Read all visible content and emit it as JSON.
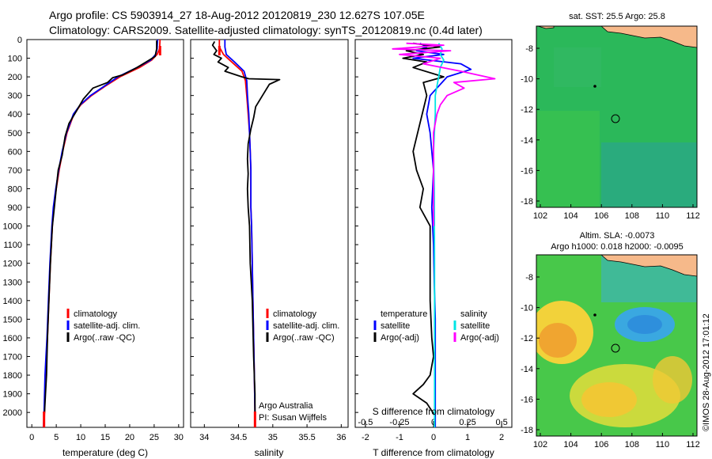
{
  "header": {
    "line1": "Argo profile: CS 5903914_27 18-Aug-2012 20120819_230 12.627S 107.05E",
    "line2": "Climatology: CARS2009. Satellite-adjusted climatology: synTS_20120819.nc (0.4d later)"
  },
  "colors": {
    "climatology": "#ff0000",
    "satellite": "#0000ff",
    "argo": "#000000",
    "sal_satellite": "#00e5e5",
    "sal_argo": "#ff00ff",
    "land": "#f6b98a"
  },
  "depth_axis": {
    "ticks": [
      0,
      100,
      200,
      300,
      400,
      500,
      600,
      700,
      800,
      900,
      1000,
      1100,
      1200,
      1300,
      1400,
      1500,
      1600,
      1700,
      1800,
      1900,
      2000
    ]
  },
  "legend_ts": [
    {
      "label": "climatology",
      "color_key": "climatology"
    },
    {
      "label": "satellite-adj. clim.",
      "color_key": "satellite"
    },
    {
      "label": "Argo(..raw -QC)",
      "color_key": "argo"
    }
  ],
  "legend_diff": {
    "temperature_title": "temperature",
    "salinity_title": "salinity",
    "t_satellite": "satellite",
    "t_argo": "Argo(-adj)",
    "s_satellite": "satellite",
    "s_argo": "Argo(-adj)"
  },
  "credits": {
    "line1": "Argo Australia",
    "line2": "PI: Susan Wijffels"
  },
  "maps": {
    "sst_title": "sat. SST: 25.5 Argo: 25.8",
    "sla_title1": "Altim. SLA: -0.0073",
    "sla_title2": "Argo h1000: 0.018 h2000: -0.0095",
    "lon_ticks": [
      "102",
      "104",
      "106",
      "108",
      "110",
      "112"
    ],
    "lat_ticks": [
      "-8",
      "-10",
      "-12",
      "-14",
      "-16",
      "-18"
    ],
    "timestamp": "©IMOS 28-Aug-2012 17:01:12"
  },
  "chart_data": [
    {
      "type": "line",
      "id": "temperature",
      "xlabel": "temperature (deg C)",
      "xlim": [
        -1,
        31
      ],
      "xticks": [
        0,
        5,
        10,
        15,
        20,
        25,
        30
      ],
      "ylim": [
        0,
        2080
      ],
      "series": [
        {
          "name": "climatology",
          "color_key": "climatology",
          "x": [
            26.2,
            26.1,
            25.6,
            24.5,
            22,
            18,
            15,
            12.2,
            10,
            8.6,
            7.2,
            6.3,
            5.6,
            5.0,
            4.5,
            4.2,
            3.8,
            3.5,
            3.2,
            3.0,
            2.8,
            2.7,
            2.6,
            2.5
          ],
          "y": [
            0,
            50,
            80,
            110,
            150,
            200,
            250,
            300,
            350,
            400,
            500,
            600,
            700,
            800,
            900,
            1000,
            1200,
            1400,
            1600,
            1700,
            1800,
            1900,
            2000,
            2080
          ]
        },
        {
          "name": "satellite-adj. clim.",
          "color_key": "satellite",
          "x": [
            25.7,
            25.6,
            25.3,
            24.3,
            21.5,
            17.6,
            14.8,
            12,
            9.9,
            8.5,
            7.1,
            6.2,
            5.5,
            4.9,
            4.4,
            4.1,
            3.7,
            3.4,
            3.1,
            2.9,
            2.7,
            2.6,
            2.5,
            2.4
          ],
          "y": [
            0,
            50,
            80,
            110,
            150,
            200,
            250,
            300,
            350,
            400,
            500,
            600,
            700,
            800,
            900,
            1000,
            1200,
            1400,
            1600,
            1700,
            1800,
            1900,
            2000,
            2080
          ]
        },
        {
          "name": "Argo(..raw -QC)",
          "color_key": "argo",
          "x": [
            25.5,
            25.5,
            25.2,
            24,
            21.5,
            18.5,
            16.5,
            15.5,
            12.5,
            10.5,
            9.2,
            7.6,
            6.8,
            6.2,
            5.4,
            5.0,
            4.6,
            4.2,
            3.8,
            3.5,
            3.2,
            3.0,
            2.8,
            2.6,
            2.5
          ],
          "y": [
            5,
            50,
            90,
            110,
            150,
            190,
            205,
            230,
            260,
            320,
            380,
            450,
            520,
            620,
            700,
            800,
            900,
            1000,
            1200,
            1400,
            1600,
            1800,
            1900,
            2000,
            2020
          ]
        }
      ]
    },
    {
      "type": "line",
      "id": "salinity",
      "xlabel": "salinity",
      "xlim": [
        33.8,
        36.1
      ],
      "xticks": [
        34,
        34.5,
        35,
        35.5,
        36
      ],
      "ylim": [
        0,
        2080
      ],
      "series": [
        {
          "name": "climatology",
          "color_key": "climatology",
          "x": [
            34.22,
            34.22,
            34.28,
            34.4,
            34.55,
            34.6,
            34.62,
            34.64,
            34.66,
            34.67,
            34.68,
            34.68,
            34.68,
            34.69,
            34.7,
            34.71,
            34.72,
            34.73,
            34.74,
            34.74
          ],
          "y": [
            0,
            40,
            80,
            120,
            170,
            220,
            300,
            400,
            500,
            600,
            700,
            800,
            900,
            1000,
            1200,
            1400,
            1600,
            1800,
            2000,
            2080
          ]
        },
        {
          "name": "satellite-adj. clim.",
          "color_key": "satellite",
          "x": [
            34.3,
            34.3,
            34.32,
            34.44,
            34.58,
            34.62,
            34.63,
            34.65,
            34.66,
            34.67,
            34.68,
            34.68,
            34.68,
            34.69,
            34.7,
            34.71,
            34.72,
            34.73,
            34.74,
            34.74
          ],
          "y": [
            0,
            40,
            80,
            120,
            170,
            220,
            300,
            400,
            500,
            600,
            700,
            800,
            900,
            1000,
            1200,
            1400,
            1600,
            1800,
            2000,
            2080
          ]
        },
        {
          "name": "Argo(..raw -QC)",
          "color_key": "argo",
          "x": [
            34.15,
            34.12,
            34.18,
            34.14,
            34.25,
            34.2,
            34.35,
            34.3,
            34.55,
            34.65,
            35.1,
            34.95,
            34.85,
            34.75,
            34.72,
            34.68,
            34.64,
            34.63,
            34.64,
            34.63,
            34.64,
            34.66,
            34.67,
            34.7,
            34.72,
            34.74,
            34.74
          ],
          "y": [
            10,
            30,
            60,
            80,
            100,
            120,
            150,
            170,
            200,
            210,
            215,
            240,
            300,
            360,
            420,
            480,
            560,
            640,
            720,
            800,
            900,
            1000,
            1200,
            1400,
            1700,
            1900,
            2020
          ]
        }
      ]
    },
    {
      "type": "line",
      "id": "difference",
      "xlabel": "T difference from climatology",
      "xlabel_top": "S difference from climatology",
      "xlim": [
        -2.3,
        2.3
      ],
      "xticks": [
        "-2",
        "-1",
        "0",
        "1",
        "2"
      ],
      "xticks_top": [
        "-0.5",
        "-0.25",
        "0",
        "0.25",
        "0.5"
      ],
      "ylim": [
        0,
        2080
      ],
      "series": [
        {
          "name": "temperature satellite",
          "color_key": "satellite",
          "x": [
            -0.4,
            -0.2,
            -0.5,
            0.3,
            -0.6,
            0.8,
            1.1,
            0.4,
            -0.1,
            -0.2,
            -0.1,
            0,
            -0.05,
            0,
            0.02,
            0.05,
            0.05,
            0.05,
            0.05
          ],
          "y": [
            20,
            40,
            60,
            80,
            100,
            130,
            160,
            200,
            300,
            400,
            500,
            700,
            900,
            1100,
            1300,
            1500,
            1700,
            1900,
            2080
          ]
        },
        {
          "name": "temperature Argo(-adj)",
          "color_key": "argo",
          "x": [
            -0.6,
            0.2,
            -0.8,
            -0.3,
            -0.9,
            -0.2,
            -0.6,
            0.3,
            -0.3,
            -0.2,
            -0.6,
            -0.5,
            -0.3,
            -0.4,
            -0.1,
            -0.1,
            -0.1,
            -0.05,
            0,
            -0.05,
            -0.1,
            -0.3,
            -0.6,
            -0.2,
            0.05
          ],
          "y": [
            20,
            40,
            60,
            80,
            100,
            120,
            150,
            200,
            230,
            300,
            600,
            700,
            800,
            900,
            1000,
            1200,
            1400,
            1600,
            1700,
            1750,
            1800,
            1850,
            1900,
            1950,
            2020
          ]
        },
        {
          "name": "salinity satellite",
          "color_key": "sal_satellite",
          "x": [
            0.15,
            0.25,
            0.2,
            0.3,
            0.2,
            0.15,
            0.1,
            0.05,
            0.05,
            0,
            0.02,
            0.03,
            0.03,
            0.03,
            0.03
          ],
          "y": [
            20,
            50,
            80,
            110,
            150,
            200,
            250,
            300,
            400,
            600,
            800,
            1200,
            1600,
            1900,
            2080
          ]
        },
        {
          "name": "salinity Argo(-adj)",
          "color_key": "sal_argo",
          "x": [
            -0.8,
            0.3,
            -1.2,
            0.5,
            -1.0,
            0.2,
            -0.3,
            0.8,
            1.8,
            0.6,
            0.9,
            0.4,
            0.2,
            0.1,
            0,
            0,
            0
          ],
          "y": [
            20,
            30,
            50,
            60,
            80,
            100,
            130,
            170,
            210,
            230,
            260,
            300,
            350,
            400,
            500,
            800,
            1000
          ]
        }
      ]
    }
  ]
}
